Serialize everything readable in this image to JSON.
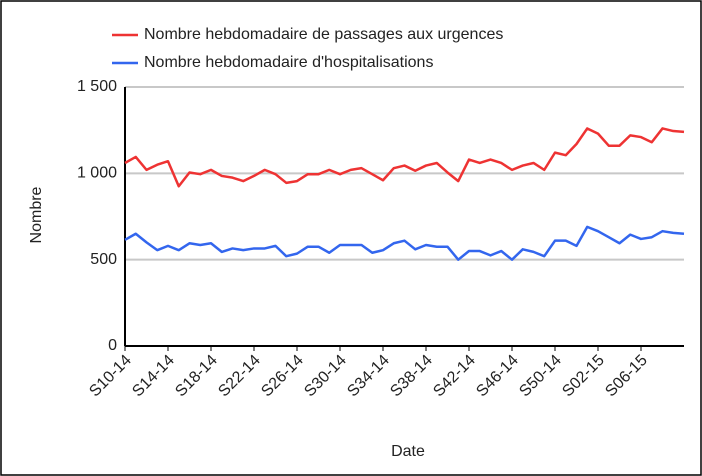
{
  "chart_data": {
    "type": "line",
    "x_label": "Date",
    "y_label": "Nombre",
    "categories": [
      "S10-14",
      null,
      null,
      null,
      "S14-14",
      null,
      null,
      null,
      "S18-14",
      null,
      null,
      null,
      "S22-14",
      null,
      null,
      null,
      "S26-14",
      null,
      null,
      null,
      "S30-14",
      null,
      null,
      null,
      "S34-14",
      null,
      null,
      null,
      "S38-14",
      null,
      null,
      null,
      "S42-14",
      null,
      null,
      null,
      "S46-14",
      null,
      null,
      null,
      "S50-14",
      null,
      null,
      null,
      "S02-15",
      null,
      null,
      null,
      "S06-15",
      null,
      null,
      null,
      null
    ],
    "series": [
      {
        "name": "Nombre hebdomadaire de passages aux urgences",
        "color": "#ee3333",
        "values": [
          1060,
          1095,
          1020,
          1050,
          1070,
          925,
          1005,
          995,
          1020,
          985,
          975,
          955,
          985,
          1020,
          995,
          945,
          955,
          995,
          995,
          1020,
          995,
          1020,
          1030,
          995,
          960,
          1030,
          1045,
          1015,
          1045,
          1060,
          1005,
          955,
          1080,
          1060,
          1080,
          1060,
          1020,
          1045,
          1060,
          1020,
          1120,
          1105,
          1170,
          1260,
          1230,
          1160,
          1160,
          1220,
          1210,
          1180,
          1260,
          1245,
          1240
        ]
      },
      {
        "name": "Nombre hebdomadaire d'hospitalisations",
        "color": "#3366ee",
        "values": [
          615,
          650,
          600,
          555,
          580,
          555,
          595,
          585,
          595,
          545,
          565,
          555,
          565,
          565,
          580,
          520,
          535,
          575,
          575,
          540,
          585,
          585,
          585,
          540,
          555,
          595,
          610,
          560,
          585,
          575,
          575,
          500,
          550,
          550,
          525,
          550,
          500,
          560,
          545,
          520,
          610,
          610,
          580,
          690,
          665,
          630,
          595,
          645,
          620,
          630,
          665,
          655,
          650
        ]
      }
    ],
    "ylim": [
      0,
      1500
    ],
    "yticks": [
      0,
      500,
      {
        "value": 1000,
        "label": "1 000"
      },
      {
        "value": 1500,
        "label": "1 500"
      }
    ],
    "grid": true
  }
}
